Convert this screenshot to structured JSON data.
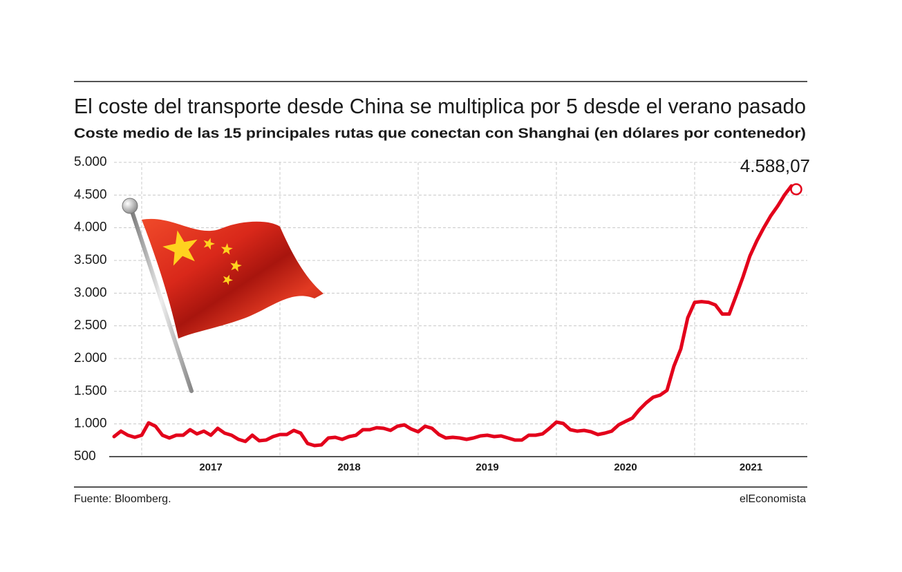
{
  "chart_data": {
    "type": "line",
    "title": "El coste del transporte desde China se multiplica por 5 desde el verano pasado",
    "subtitle": "Coste medio de las 15 principales rutas que conectan con Shanghai (en dólares por contenedor)",
    "x": [
      2016.8,
      2016.85,
      2016.9,
      2016.95,
      2017,
      2017.05,
      2017.1,
      2017.15,
      2017.2,
      2017.25,
      2017.3,
      2017.35,
      2017.4,
      2017.45,
      2017.5,
      2017.55,
      2017.6,
      2017.65,
      2017.7,
      2017.75,
      2017.8,
      2017.85,
      2017.9,
      2017.95,
      2018,
      2018.05,
      2018.1,
      2018.15,
      2018.2,
      2018.25,
      2018.3,
      2018.35,
      2018.4,
      2018.45,
      2018.5,
      2018.55,
      2018.6,
      2018.65,
      2018.7,
      2018.75,
      2018.8,
      2018.85,
      2018.9,
      2018.95,
      2019,
      2019.05,
      2019.1,
      2019.15,
      2019.2,
      2019.25,
      2019.3,
      2019.35,
      2019.4,
      2019.45,
      2019.5,
      2019.55,
      2019.6,
      2019.65,
      2019.7,
      2019.75,
      2019.8,
      2019.85,
      2019.9,
      2019.95,
      2020,
      2020.05,
      2020.1,
      2020.15,
      2020.2,
      2020.25,
      2020.3,
      2020.35,
      2020.4,
      2020.45,
      2020.5,
      2020.55,
      2020.6,
      2020.65,
      2020.7,
      2020.75,
      2020.8,
      2020.85,
      2020.9,
      2020.95,
      2021,
      2021.05,
      2021.1,
      2021.15,
      2021.2,
      2021.25,
      2021.3,
      2021.35,
      2021.4,
      2021.45,
      2021.5,
      2021.55,
      2021.6,
      2021.65,
      2021.7,
      2021.735
    ],
    "values": [
      806,
      890,
      827,
      796,
      827,
      1017,
      965,
      827,
      785,
      827,
      827,
      912,
      848,
      890,
      827,
      933,
      859,
      827,
      764,
      732,
      827,
      743,
      753,
      806,
      838,
      838,
      901,
      859,
      701,
      669,
      680,
      785,
      796,
      764,
      806,
      827,
      912,
      912,
      943,
      933,
      901,
      965,
      986,
      922,
      880,
      965,
      933,
      838,
      785,
      796,
      785,
      764,
      785,
      817,
      827,
      806,
      817,
      785,
      753,
      753,
      827,
      827,
      848,
      933,
      1028,
      1007,
      912,
      890,
      901,
      880,
      838,
      859,
      890,
      986,
      1039,
      1091,
      1218,
      1324,
      1408,
      1440,
      1514,
      1883,
      2147,
      2623,
      2860,
      2870,
      2860,
      2820,
      2680,
      2680,
      2960,
      3250,
      3570,
      3800,
      4000,
      4180,
      4330,
      4500,
      4640,
      4588.07
    ],
    "color": "#e3001b",
    "annotation": "4.588,07",
    "xlim": [
      2016.8,
      2021.815
    ],
    "xticks": [
      2017,
      2018,
      2019,
      2020,
      2021
    ],
    "ylim": [
      500,
      5000
    ],
    "yticks": [
      {
        "value": 5000,
        "label": "5.000"
      },
      {
        "value": 4500,
        "label": "4.500"
      },
      {
        "value": 4000,
        "label": "4.000"
      },
      {
        "value": 3500,
        "label": "3.500"
      },
      {
        "value": 3000,
        "label": "3.000"
      },
      {
        "value": 2500,
        "label": "2.500"
      },
      {
        "value": 2000,
        "label": "2.000"
      },
      {
        "value": 1500,
        "label": "1.500"
      },
      {
        "value": 1000,
        "label": "1.000"
      },
      500
    ],
    "grid": true,
    "source": "Fuente: Bloomberg.",
    "credit": "elEconomista"
  }
}
